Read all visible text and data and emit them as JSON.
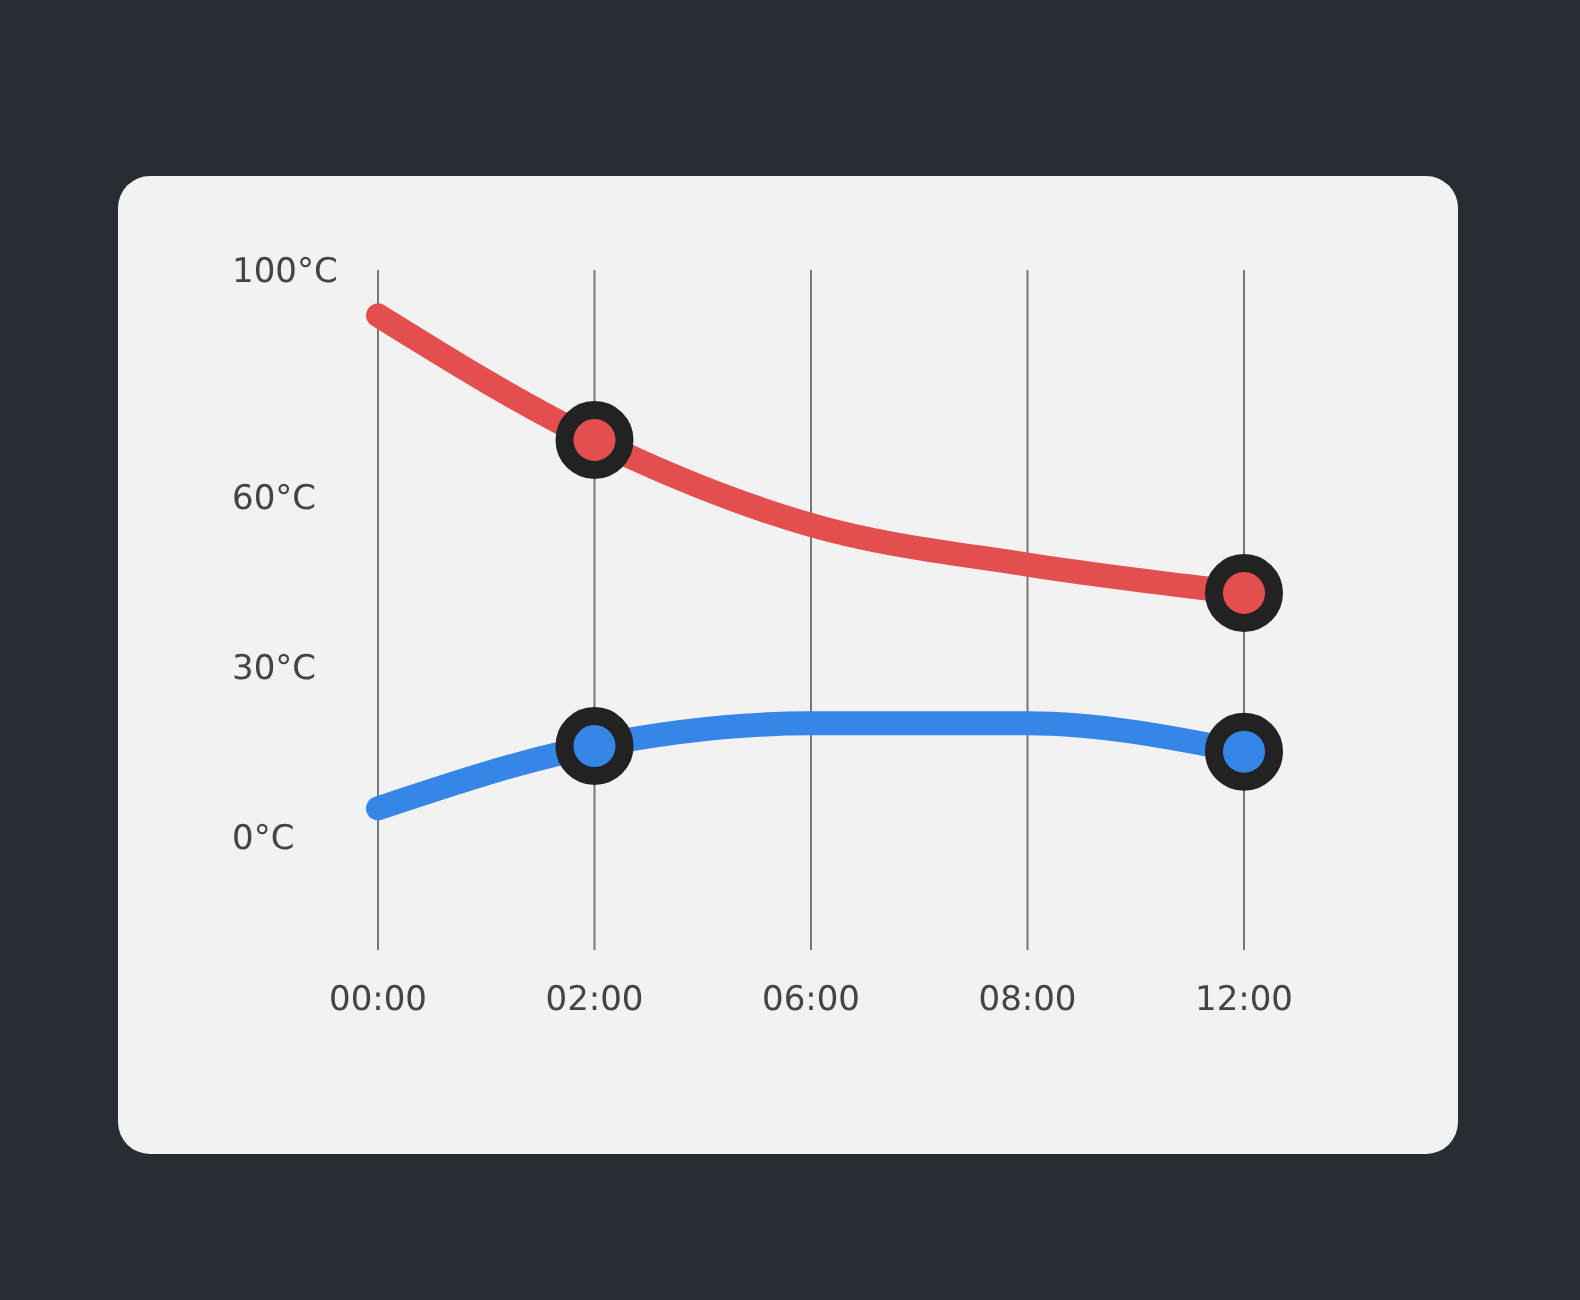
{
  "chart_data": {
    "type": "line",
    "categories": [
      "00:00",
      "02:00",
      "06:00",
      "08:00",
      "12:00"
    ],
    "series": [
      {
        "color": "#e34f4f",
        "values": [
          92,
          70,
          55,
          48,
          43
        ]
      },
      {
        "color": "#3586e6",
        "values": [
          5,
          16,
          20,
          20,
          15
        ]
      },
      {
        "type": "scatter",
        "marker": "circle",
        "color": "#e34f4f",
        "x": [
          "02:00",
          "12:00"
        ],
        "values": [
          70,
          43
        ]
      },
      {
        "type": "scatter",
        "marker": "circle",
        "color": "#3586e6",
        "x": [
          "02:00",
          "12:00"
        ],
        "values": [
          16,
          15
        ]
      }
    ],
    "ylim": [
      -20,
      100
    ],
    "yticks": [
      {
        "value": 0,
        "label": "0°C"
      },
      {
        "value": 30,
        "label": "30°C"
      },
      {
        "value": 60,
        "label": "60°C"
      },
      {
        "value": 100,
        "label": "100°C"
      }
    ],
    "grid": "x",
    "line_style": "solid"
  }
}
